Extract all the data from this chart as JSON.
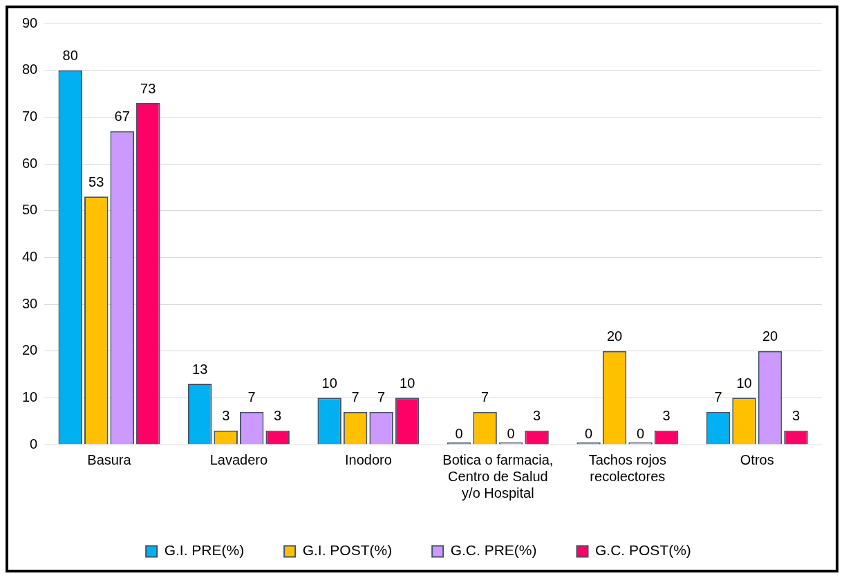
{
  "chart_data": {
    "type": "bar",
    "categories": [
      "Basura",
      "Lavadero",
      "Inodoro",
      "Botica o farmacia, Centro de Salud y/o Hospital",
      "Tachos rojos recolectores",
      "Otros"
    ],
    "series": [
      {
        "name": "G.I. PRE(%)",
        "color": "#00b0f0",
        "values": [
          80,
          13,
          10,
          0,
          0,
          7
        ]
      },
      {
        "name": "G.I. POST(%)",
        "color": "#ffc000",
        "values": [
          53,
          3,
          7,
          7,
          20,
          10
        ]
      },
      {
        "name": "G.C. PRE(%)",
        "color": "#cc99ff",
        "values": [
          67,
          7,
          7,
          0,
          0,
          20
        ]
      },
      {
        "name": "G.C. POST(%)",
        "color": "#ff0066",
        "values": [
          73,
          3,
          10,
          3,
          3,
          3
        ]
      }
    ],
    "ylim": [
      0,
      90
    ],
    "yticks": [
      0,
      10,
      20,
      30,
      40,
      50,
      60,
      70,
      80,
      90
    ],
    "grid": "y",
    "legend": "bottom",
    "data_labels": true
  }
}
